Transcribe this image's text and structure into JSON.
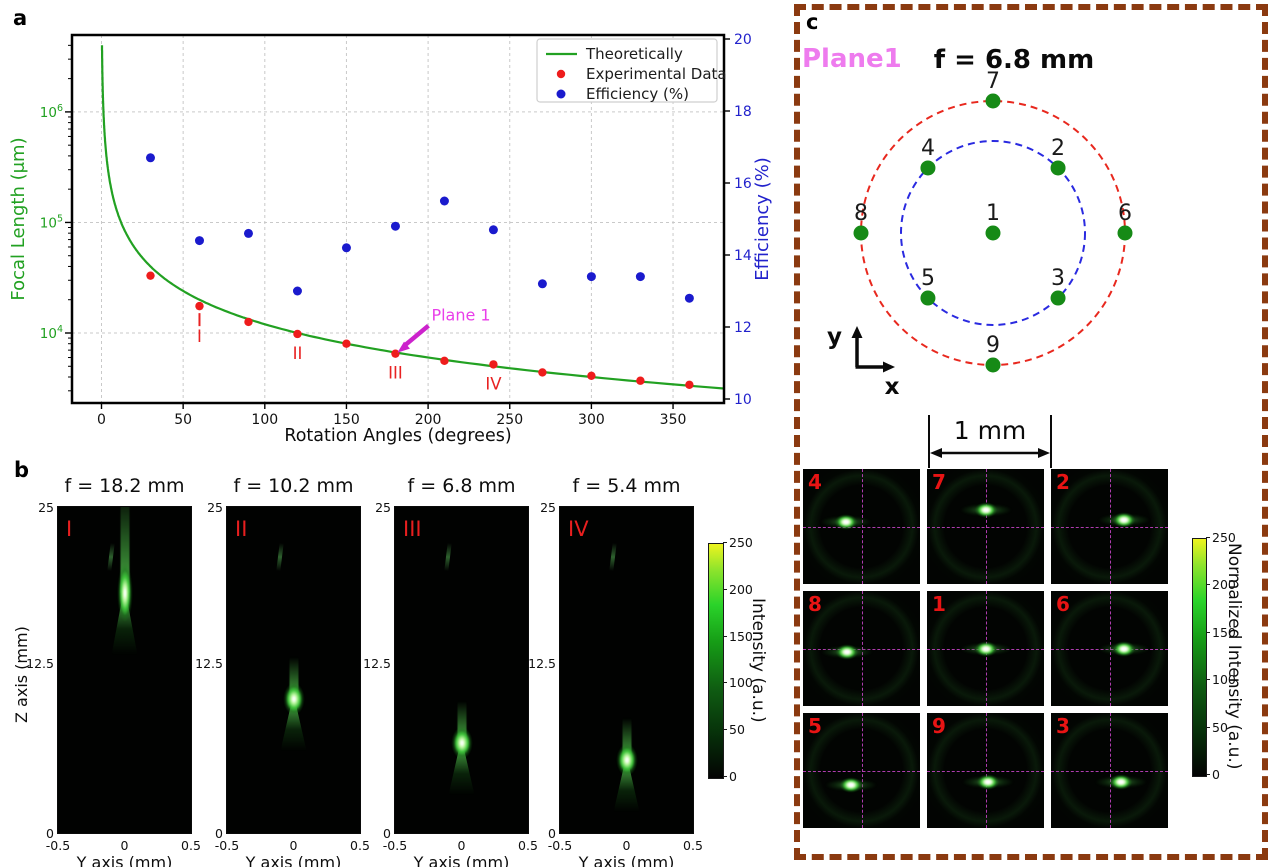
{
  "panel_a": {
    "label": "a",
    "legend": [
      "Theoretically",
      "Experimental Data",
      "Efficiency (%)"
    ],
    "annotation": "Plane 1",
    "point_labels": [
      "I",
      "II",
      "III",
      "IV"
    ]
  },
  "panel_b": {
    "label": "b",
    "ylabel": "Z axis (mm)",
    "xlabel": "Y axis (mm)",
    "y_ticks": [
      "25",
      "12.5",
      "0"
    ],
    "x_ticks": [
      "-0.5",
      "0",
      "0.5"
    ],
    "colorbar_label": "Intensity (a.u.)",
    "colorbar_ticks": [
      "0",
      "50",
      "100",
      "150",
      "200",
      "250"
    ]
  },
  "panel_c": {
    "label": "c",
    "plane_label": "Plane1",
    "focal_label": "f = 6.8 mm",
    "scale_bar": "1 mm",
    "axis_x": "x",
    "axis_y": "y",
    "colorbar_label": "Normalized Intensity (a.u.)",
    "colorbar_ticks": [
      "0",
      "50",
      "100",
      "150",
      "200",
      "250"
    ],
    "diagram": {
      "outer_circle_color": "#e8281e",
      "inner_circle_color": "#2a2ae0",
      "dot_color": "#168a16",
      "points": [
        {
          "label": "1",
          "ring": "center",
          "angle": 0
        },
        {
          "label": "2",
          "ring": "inner",
          "angle": 45
        },
        {
          "label": "3",
          "ring": "inner",
          "angle": 315
        },
        {
          "label": "4",
          "ring": "inner",
          "angle": 135
        },
        {
          "label": "5",
          "ring": "inner",
          "angle": 225
        },
        {
          "label": "6",
          "ring": "outer",
          "angle": 0
        },
        {
          "label": "7",
          "ring": "outer",
          "angle": 90
        },
        {
          "label": "8",
          "ring": "outer",
          "angle": 180
        },
        {
          "label": "9",
          "ring": "outer",
          "angle": 270
        }
      ]
    }
  },
  "chart_data": [
    {
      "id": "focal-length-vs-rotation",
      "type": "line+scatter",
      "xlabel": "Rotation Angles (degrees)",
      "ylabel_left": "Focal Length (μm)",
      "ylabel_right": "Efficiency (%)",
      "x_ticks": [
        0,
        50,
        100,
        150,
        200,
        250,
        300,
        350
      ],
      "x_range_deg": [
        -18,
        381
      ],
      "y_left_scale": "log",
      "y_left_tick_exponents": [
        4,
        5,
        6
      ],
      "y_right_ticks": [
        10,
        12,
        14,
        16,
        18,
        20
      ],
      "y_right_range": [
        10,
        20
      ],
      "grid": true,
      "legend_position": "upper right",
      "series": [
        {
          "name": "Theoretically",
          "type": "line",
          "color": "#22a122",
          "model": "f = C / theta",
          "C_um_deg": 1200000
        },
        {
          "name": "Experimental Data",
          "type": "scatter",
          "color": "#ee1c1c",
          "x": [
            30,
            60,
            90,
            120,
            150,
            180,
            210,
            240,
            270,
            300,
            330,
            360
          ],
          "y": [
            33000,
            17500,
            12600,
            9800,
            8000,
            6500,
            5600,
            5200,
            4400,
            4100,
            3700,
            3400
          ]
        },
        {
          "name": "Efficiency (%)",
          "type": "scatter",
          "color": "#1a1acd",
          "x": [
            30,
            60,
            90,
            120,
            150,
            180,
            210,
            240,
            270,
            300,
            330,
            360
          ],
          "y": [
            16.7,
            14.4,
            14.6,
            13.0,
            14.2,
            14.8,
            15.5,
            14.7,
            13.2,
            13.4,
            13.4,
            12.8
          ]
        }
      ],
      "point_labels": [
        {
          "text": "I",
          "x": 60
        },
        {
          "text": "II",
          "x": 120
        },
        {
          "text": "III",
          "x": 180
        },
        {
          "text": "IV",
          "x": 240
        }
      ],
      "annotation": {
        "text": "Plane 1",
        "color": "#e93fe9",
        "target_x_deg": 180
      }
    },
    {
      "id": "beam-profiles",
      "type": "heatmap",
      "xlabel": "Y axis (mm)",
      "ylabel": "Z axis (mm)",
      "x_ticks": [
        -0.5,
        0,
        0.5
      ],
      "y_ticks": [
        25,
        12.5,
        0
      ],
      "colorbar": {
        "label": "Intensity (a.u.)",
        "ticks": [
          0,
          50,
          100,
          150,
          200,
          250
        ]
      },
      "panels": [
        {
          "title": "f = 18.2 mm",
          "numeral": "I",
          "focus_z_mm": 18.4
        },
        {
          "title": "f = 10.2 mm",
          "numeral": "II",
          "focus_z_mm": 10.3
        },
        {
          "title": "f = 6.8 mm",
          "numeral": "III",
          "focus_z_mm": 6.9
        },
        {
          "title": "f = 5.4 mm",
          "numeral": "IV",
          "focus_z_mm": 5.6
        }
      ]
    },
    {
      "id": "focal-spot-grid",
      "type": "heatmap",
      "scale_bar": "1 mm",
      "colorbar": {
        "label": "Normalized Intensity (a.u.)",
        "ticks": [
          0,
          50,
          100,
          150,
          200,
          250
        ]
      },
      "cells": [
        {
          "n": "4",
          "sx": 0.37,
          "sy": 0.46
        },
        {
          "n": "7",
          "sx": 0.5,
          "sy": 0.36
        },
        {
          "n": "2",
          "sx": 0.62,
          "sy": 0.44
        },
        {
          "n": "8",
          "sx": 0.38,
          "sy": 0.53
        },
        {
          "n": "1",
          "sx": 0.5,
          "sy": 0.5
        },
        {
          "n": "6",
          "sx": 0.62,
          "sy": 0.5
        },
        {
          "n": "5",
          "sx": 0.41,
          "sy": 0.63
        },
        {
          "n": "9",
          "sx": 0.52,
          "sy": 0.6
        },
        {
          "n": "3",
          "sx": 0.6,
          "sy": 0.6
        }
      ]
    }
  ]
}
